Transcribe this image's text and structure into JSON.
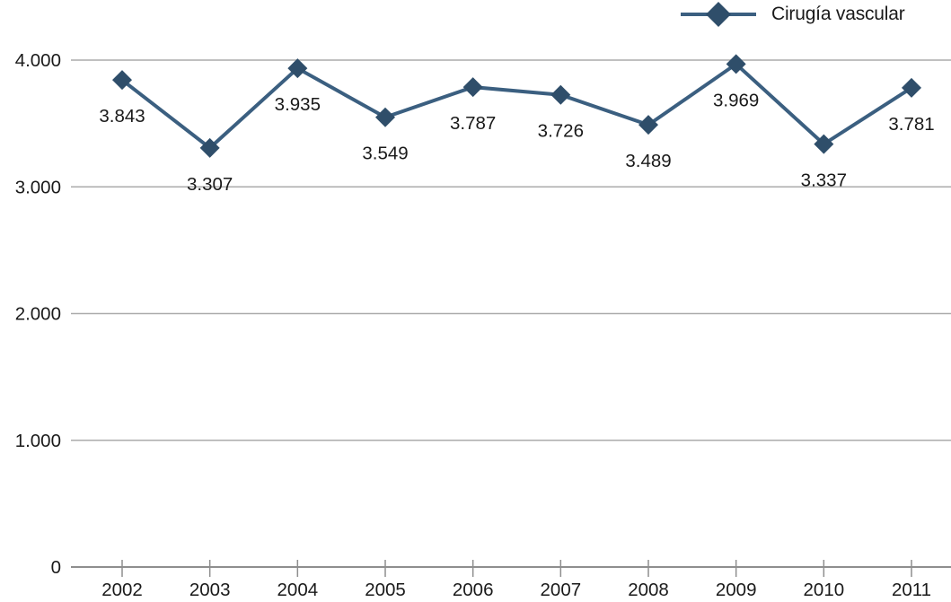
{
  "chart_data": {
    "type": "line",
    "title": "",
    "legend_position": "top-right",
    "grid": "horizontal",
    "ylim": [
      0,
      4000
    ],
    "y_ticks": [
      0,
      1000,
      2000,
      3000,
      4000
    ],
    "y_ticklabels": [
      "0",
      "1.000",
      "2.000",
      "3.000",
      "4.000"
    ],
    "x": [
      2002,
      2003,
      2004,
      2005,
      2006,
      2007,
      2008,
      2009,
      2010,
      2011
    ],
    "x_ticklabels": [
      "2002",
      "2003",
      "2004",
      "2005",
      "2006",
      "2007",
      "2008",
      "2009",
      "2010",
      "2011"
    ],
    "series": [
      {
        "name": "Cirugía vascular",
        "marker": "diamond",
        "line_color": "#3B5F80",
        "marker_color": "#2F4E6A",
        "values": [
          3843,
          3307,
          3935,
          3549,
          3787,
          3726,
          3489,
          3969,
          3337,
          3781
        ],
        "value_labels": [
          "3.843",
          "3.307",
          "3.935",
          "3.549",
          "3.787",
          "3.726",
          "3.489",
          "3.969",
          "3.337",
          "3.781"
        ]
      }
    ],
    "colors": {
      "grid": "#ABABAB",
      "axis": "#8E8E8E",
      "text": "#1A1A1A"
    }
  }
}
